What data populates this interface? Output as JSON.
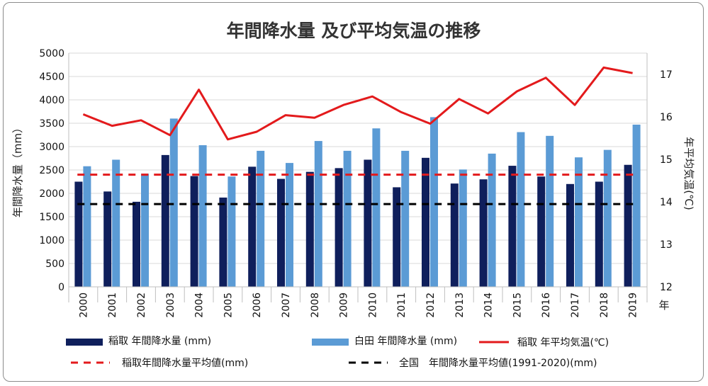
{
  "chart_data": {
    "type": "bar",
    "title": "年間降水量 及び平均気温の推移",
    "ylabel": "年間降水量（mm）",
    "y2label": "年平均気温(℃)",
    "xunit": "年",
    "ylim": [
      0,
      5000
    ],
    "y_ticks": [
      "0",
      "500",
      "1000",
      "1500",
      "2000",
      "2500",
      "3000",
      "3500",
      "4000",
      "4500",
      "5000"
    ],
    "y2lim": [
      12,
      17.5
    ],
    "y2_ticks": [
      "12",
      "13",
      "14",
      "15",
      "16",
      "17"
    ],
    "categories": [
      "2000",
      "2001",
      "2002",
      "2003",
      "2004",
      "2005",
      "2006",
      "2007",
      "2008",
      "2009",
      "2010",
      "2011",
      "2012",
      "2013",
      "2014",
      "2015",
      "2016",
      "2017",
      "2018",
      "2019"
    ],
    "series": [
      {
        "name": "稲取 年間降水量 (mm)",
        "type": "bar",
        "axis": "left",
        "color": "#0f1f5c",
        "values": [
          2250,
          2040,
          1820,
          2820,
          2370,
          1910,
          2570,
          2310,
          2460,
          2540,
          2720,
          2130,
          2760,
          2210,
          2300,
          2590,
          2360,
          2200,
          2250,
          2610
        ]
      },
      {
        "name": "白田 年間降水量 (mm)",
        "type": "bar",
        "axis": "left",
        "color": "#5b9bd5",
        "values": [
          2580,
          2720,
          2420,
          3600,
          3030,
          2360,
          2910,
          2650,
          3120,
          2910,
          3390,
          2910,
          3630,
          2510,
          2850,
          3310,
          3230,
          2770,
          2930,
          3470
        ]
      },
      {
        "name": "稲取 年平均気温(℃)",
        "type": "line",
        "axis": "right",
        "color": "#e31a1c",
        "values": [
          16.06,
          15.79,
          15.92,
          15.57,
          16.64,
          15.47,
          15.65,
          16.04,
          15.98,
          16.28,
          16.48,
          16.11,
          15.84,
          16.42,
          16.08,
          16.6,
          16.92,
          16.28,
          17.16,
          17.03
        ]
      },
      {
        "name": "稲取年間降水量平均値(mm)",
        "type": "hline",
        "axis": "left",
        "color": "#e31a1c",
        "dash": "dashed",
        "value": 2400
      },
      {
        "name": "全国　年間降水量平均値(1991-2020)(mm)",
        "type": "hline",
        "axis": "left",
        "color": "#000000",
        "dash": "dashed",
        "value": 1770
      }
    ],
    "grid": true,
    "legend_position": "bottom"
  }
}
